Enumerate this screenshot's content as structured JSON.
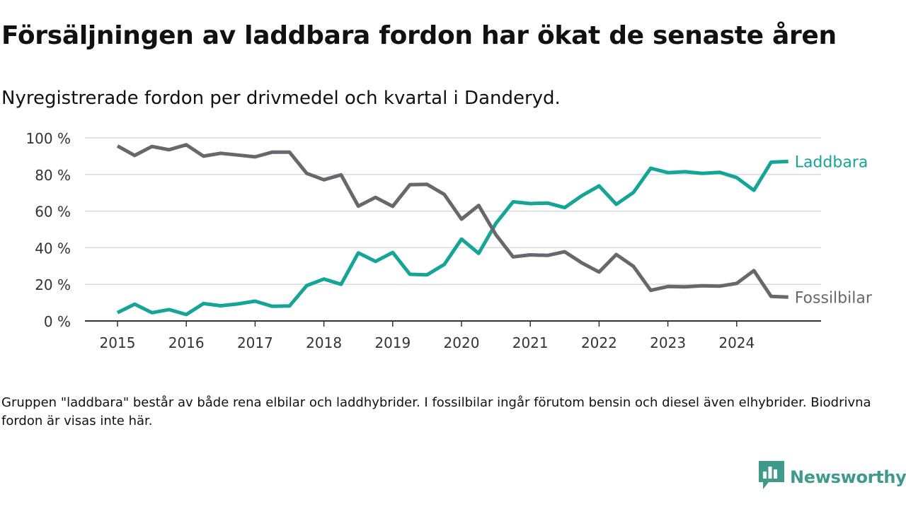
{
  "header": {
    "title": "Försäljningen av laddbara fordon har ökat de senaste åren",
    "subtitle": "Nyregistrerade fordon per drivmedel och kvartal i Danderyd."
  },
  "footer": {
    "note": "Gruppen \"laddbara\" består av både rena elbilar och laddhybrider. I fossilbilar ingår förutom bensin och diesel även elhybrider. Biodrivna fordon är visas inte här.",
    "brand": "Newsworthy"
  },
  "colors": {
    "laddbara": "#14a597",
    "fossil": "#68676e",
    "grid": "#d9d9d9",
    "axis": "#333333",
    "brand": "#3f9a8c"
  },
  "chart_data": {
    "type": "line",
    "title": "Försäljningen av laddbara fordon har ökat de senaste åren",
    "subtitle": "Nyregistrerade fordon per drivmedel och kvartal i Danderyd.",
    "xlabel": "",
    "ylabel": "",
    "ylim": [
      0,
      100
    ],
    "xlim": [
      2014.5,
      2025.2
    ],
    "y_ticks": [
      0,
      20,
      40,
      60,
      80,
      100
    ],
    "y_tick_labels": [
      "0 %",
      "20 %",
      "40 %",
      "60 %",
      "80 %",
      "100 %"
    ],
    "x_ticks": [
      2015,
      2016,
      2017,
      2018,
      2019,
      2020,
      2021,
      2022,
      2023,
      2024
    ],
    "x_tick_labels": [
      "2015",
      "2016",
      "2017",
      "2018",
      "2019",
      "2020",
      "2021",
      "2022",
      "2023",
      "2024"
    ],
    "grid": true,
    "x": [
      2015.0,
      2015.25,
      2015.5,
      2015.75,
      2016.0,
      2016.25,
      2016.5,
      2016.75,
      2017.0,
      2017.25,
      2017.5,
      2017.75,
      2018.0,
      2018.25,
      2018.5,
      2018.75,
      2019.0,
      2019.25,
      2019.5,
      2019.75,
      2020.0,
      2020.25,
      2020.5,
      2020.75,
      2021.0,
      2021.25,
      2021.5,
      2021.75,
      2022.0,
      2022.25,
      2022.5,
      2022.75,
      2023.0,
      2023.25,
      2023.5,
      2023.75,
      2024.0,
      2024.25,
      2024.5,
      2024.75
    ],
    "series": [
      {
        "name": "Laddbara",
        "label": "Laddbara",
        "color": "#14a597",
        "values": [
          4.5,
          9.2,
          4.5,
          6.2,
          3.5,
          9.5,
          8.3,
          9.3,
          10.8,
          8.0,
          8.2,
          19.3,
          22.9,
          20.0,
          37.2,
          32.5,
          37.4,
          25.5,
          25.2,
          30.9,
          44.7,
          36.9,
          53.3,
          65.1,
          64.1,
          64.4,
          61.9,
          68.4,
          73.8,
          63.7,
          70.2,
          83.4,
          81.0,
          81.5,
          80.6,
          81.2,
          78.3,
          71.3,
          86.7,
          87.1
        ]
      },
      {
        "name": "Fossilbilar",
        "label": "Fossilbilar",
        "color": "#68676e",
        "values": [
          95.6,
          90.4,
          95.3,
          93.5,
          96.2,
          90.0,
          91.6,
          90.6,
          89.6,
          92.2,
          92.2,
          80.6,
          77.1,
          79.8,
          62.7,
          67.5,
          62.6,
          74.4,
          74.6,
          69.1,
          55.6,
          63.1,
          47.1,
          35.0,
          36.1,
          35.8,
          37.8,
          31.7,
          26.7,
          36.3,
          29.8,
          16.7,
          18.8,
          18.6,
          19.2,
          19.0,
          20.5,
          27.5,
          13.4,
          13.0
        ]
      }
    ]
  }
}
